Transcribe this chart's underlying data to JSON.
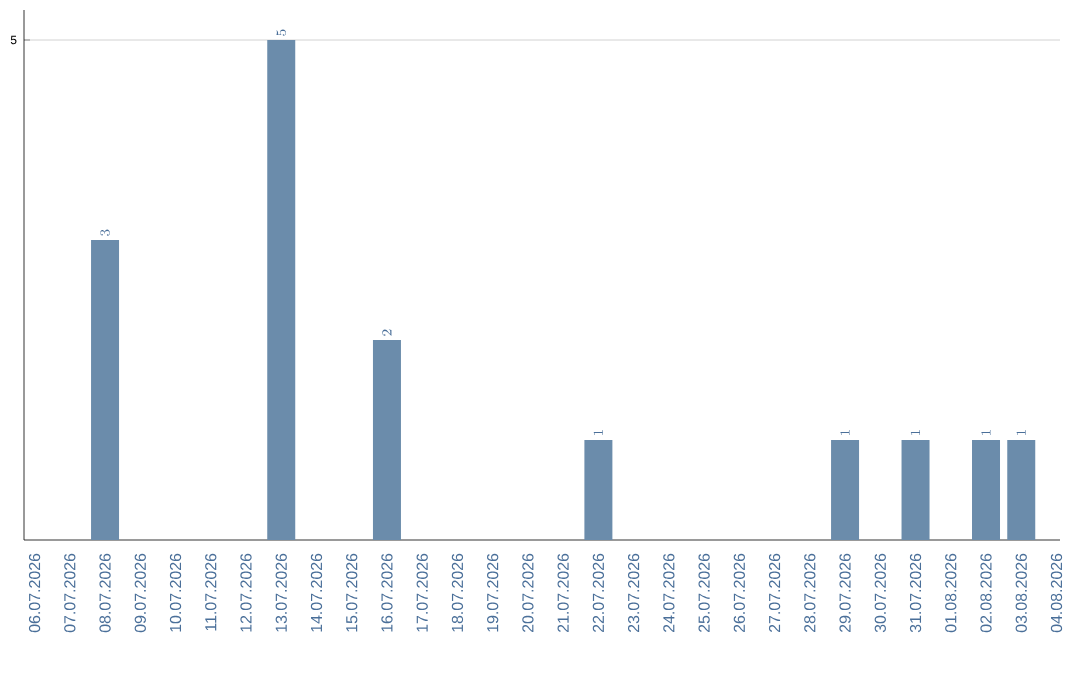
{
  "chart_data": {
    "type": "bar",
    "categories": [
      "06.07.2026",
      "07.07.2026",
      "08.07.2026",
      "09.07.2026",
      "10.07.2026",
      "11.07.2026",
      "12.07.2026",
      "13.07.2026",
      "14.07.2026",
      "15.07.2026",
      "16.07.2026",
      "17.07.2026",
      "18.07.2026",
      "19.07.2026",
      "20.07.2026",
      "21.07.2026",
      "22.07.2026",
      "23.07.2026",
      "24.07.2026",
      "25.07.2026",
      "26.07.2026",
      "27.07.2026",
      "28.07.2026",
      "29.07.2026",
      "30.07.2026",
      "31.07.2026",
      "01.08.2026",
      "02.08.2026",
      "03.08.2026",
      "04.08.2026"
    ],
    "values": [
      null,
      null,
      3,
      null,
      null,
      null,
      null,
      5,
      null,
      null,
      2,
      null,
      null,
      null,
      null,
      null,
      1,
      null,
      null,
      null,
      null,
      null,
      null,
      1,
      null,
      1,
      null,
      1,
      1,
      null
    ],
    "color": "#6b8cab",
    "ylim": [
      0,
      5.3
    ],
    "yticks": [
      5
    ],
    "grid": "y",
    "data_labels": true
  }
}
